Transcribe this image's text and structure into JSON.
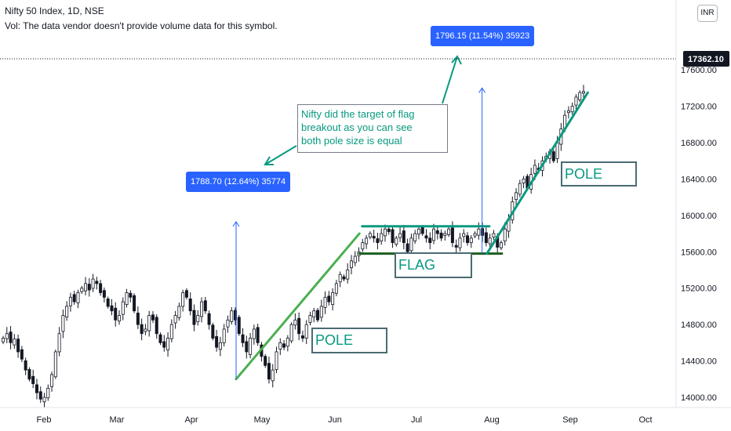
{
  "header": {
    "title": "Nifty 50 Index, 1D, NSE",
    "volume_note": "Vol: The data vendor doesn't provide volume data for this symbol."
  },
  "currency_badge": "INR",
  "current_price_label": "17362.10",
  "measures": {
    "first": "1788.70 (12.64%) 35774",
    "second": "1796.15 (11.54%) 35923"
  },
  "annotation": "Nifty did the target of flag\nbreakout as you can see\nboth pole size is equal",
  "labels": {
    "pole_1": "POLE",
    "flag": "FLAG",
    "pole_2": "POLE"
  },
  "colors": {
    "up": "#26a69a",
    "down": "#ef5350",
    "candle": "#131722",
    "pole_line": "#4caf50",
    "flag_top": "#089981",
    "flag_bottom": "#1b5e20",
    "measure_bg": "#2962ff",
    "annotation_text": "#089981"
  },
  "chart_data": {
    "type": "candlestick",
    "symbol": "Nifty 50 Index",
    "interval": "1D",
    "exchange": "NSE",
    "x_ticks": [
      "Feb",
      "Mar",
      "Apr",
      "May",
      "Jun",
      "Jul",
      "Aug",
      "Sep",
      "Oct"
    ],
    "y_ticks": [
      14000,
      14400,
      14800,
      15200,
      15600,
      16000,
      16400,
      16800,
      17200,
      17600
    ],
    "ylim": [
      13900,
      17800
    ],
    "last_price": 17362.1,
    "trend_lines": [
      {
        "name": "pole-1",
        "from": {
          "date": "2021-04-20",
          "price": 14200
        },
        "to": {
          "date": "2021-06-10",
          "price": 15800
        }
      },
      {
        "name": "flag-top",
        "from": {
          "date": "2021-06-11",
          "price": 15880
        },
        "to": {
          "date": "2021-07-31",
          "price": 15880
        }
      },
      {
        "name": "flag-bottom",
        "from": {
          "date": "2021-06-10",
          "price": 15580
        },
        "to": {
          "date": "2021-08-05",
          "price": 15580
        }
      },
      {
        "name": "pole-2",
        "from": {
          "date": "2021-07-30",
          "price": 15580
        },
        "to": {
          "date": "2021-09-08",
          "price": 17350
        }
      }
    ],
    "measures": [
      {
        "date": "2021-04-20",
        "from_price": 14200,
        "to_price": 15930,
        "label": "1788.70 (12.64%) 35774"
      },
      {
        "date": "2021-07-28",
        "from_price": 15580,
        "to_price": 17400,
        "label": "1796.15 (11.54%) 35923"
      }
    ],
    "series": [
      {
        "closes": [
          14650,
          14700,
          14600,
          14640,
          14500,
          14420,
          14300,
          14200,
          14150,
          14050,
          13980,
          14000,
          14100,
          14250,
          14500,
          14700,
          14900,
          15000,
          15100,
          15050,
          15150,
          15200,
          15250,
          15180,
          15300,
          15250,
          15150,
          15100,
          15000,
          14950,
          14850,
          14900,
          15050,
          15150,
          15100,
          14950,
          14800,
          14700,
          14750,
          14900,
          14850,
          14700,
          14600,
          14550,
          14650,
          14800,
          14900,
          15000,
          15150,
          15100,
          14950,
          14800,
          14900,
          15050,
          14950,
          14800,
          14650,
          14550,
          14600,
          14750,
          14850,
          14950,
          14850,
          14700,
          14600,
          14500,
          14650,
          14750,
          14600,
          14450,
          14350,
          14200,
          14300,
          14500,
          14600,
          14550,
          14650,
          14800,
          14850,
          14700,
          14650,
          14800,
          14900,
          14950,
          14850,
          15000,
          15100,
          15050,
          15150,
          15250,
          15350,
          15300,
          15400,
          15500,
          15550,
          15600,
          15700,
          15750,
          15800,
          15750,
          15700,
          15800,
          15850,
          15820,
          15700,
          15750,
          15800,
          15700,
          15600,
          15750,
          15800,
          15850,
          15800,
          15750,
          15700,
          15850,
          15800,
          15750,
          15800,
          15850,
          15700,
          15650,
          15750,
          15800,
          15700,
          15750,
          15800,
          15850,
          15780,
          15700,
          15750,
          15800,
          15650,
          15700,
          15850,
          15950,
          16150,
          16250,
          16350,
          16400,
          16300,
          16450,
          16550,
          16500,
          16600,
          16650,
          16700,
          16600,
          16800,
          16950,
          17100,
          17150,
          17200,
          17300,
          17350,
          17362
        ]
      }
    ]
  }
}
